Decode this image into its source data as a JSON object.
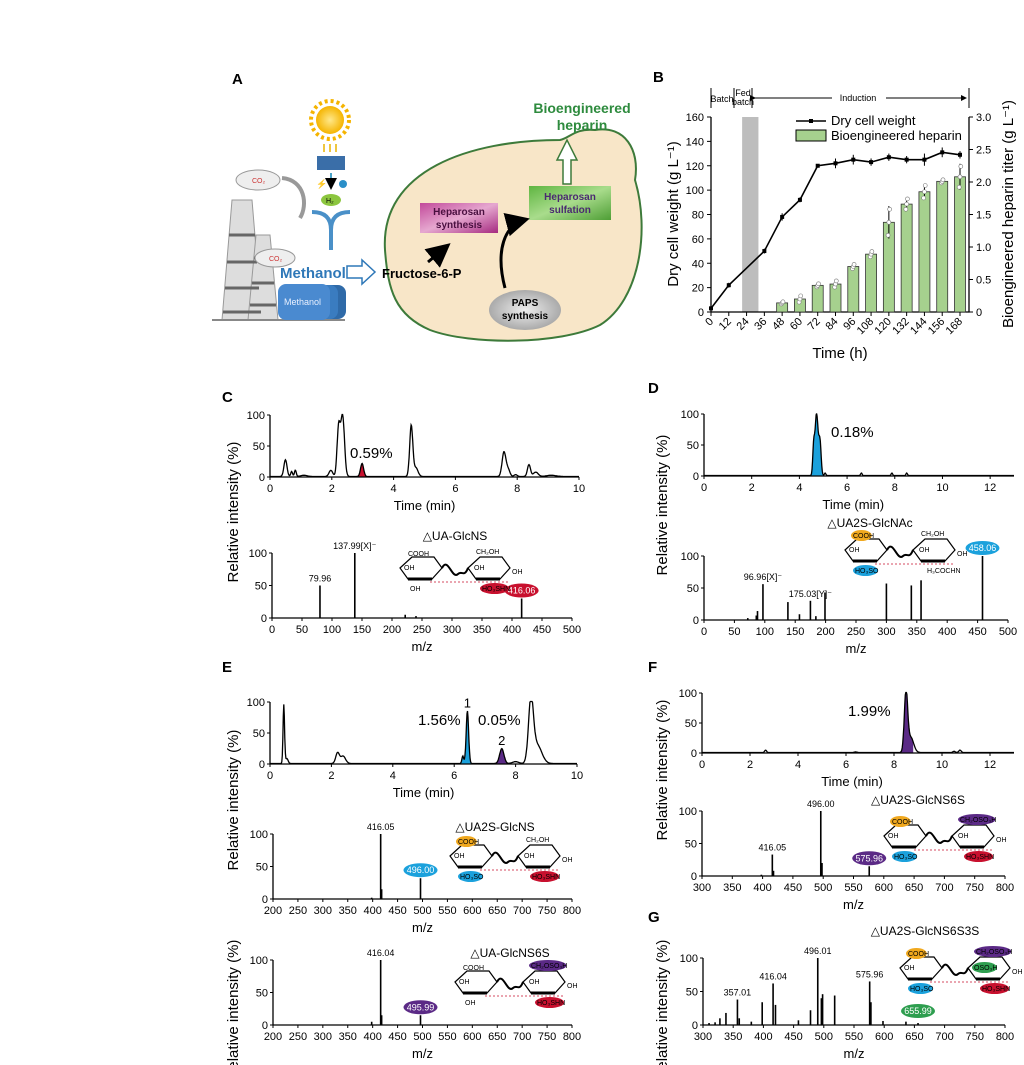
{
  "panel_labels": {
    "A": "A",
    "B": "B",
    "C": "C",
    "D": "D",
    "E": "E",
    "F": "F",
    "G": "G"
  },
  "panel_a": {
    "co2_1": "CO₂",
    "co2_2": "CO₂",
    "h2": "H₂",
    "methanol_label": "Methanol",
    "methanol_tank": "Methanol",
    "fructose": "Fructose-6-P",
    "heparosan_synthesis": [
      "Heparosan",
      "synthesis"
    ],
    "heparosan_sulfation": [
      "Heparosan",
      "sulfation"
    ],
    "paps": [
      "PAPS",
      "synthesis"
    ],
    "product": [
      "Bioengineered",
      "heparin"
    ],
    "colors": {
      "cell_fill": "#f8e6c8",
      "cell_outline": "#3d7a3a",
      "synthesis_box": "#b8398f",
      "sulfation_box": "#6cbf4a",
      "methanol": "#2f78b8",
      "product_text": "#2e8b3e"
    }
  },
  "chart_data": [
    {
      "id": "B",
      "type": "bar+line",
      "xlabel": "Time (h)",
      "ylabel": "Dry cell weight (g L⁻¹)",
      "y2label": "Bioengineered heparin titer (g L⁻¹)",
      "x_ticks": [
        0,
        12,
        24,
        36,
        48,
        60,
        72,
        84,
        96,
        108,
        120,
        132,
        144,
        156,
        168
      ],
      "ylim": [
        0,
        160
      ],
      "y_ticks": [
        0,
        20,
        40,
        60,
        80,
        100,
        120,
        140,
        160
      ],
      "y2lim": [
        0,
        3.0
      ],
      "y2_ticks": [
        "0",
        "0.5",
        "1.0",
        "1.5",
        "2.0",
        "2.5",
        "3.0"
      ],
      "phases": {
        "batch": "Batch",
        "fed_batch": [
          "Fed",
          "batch"
        ],
        "induction": "Induction"
      },
      "fed_batch_shading": [
        21,
        32
      ],
      "legend_position": "top-center",
      "series": [
        {
          "name": "Dry cell weight",
          "type": "line",
          "color": "#000000",
          "x": [
            0,
            12,
            36,
            48,
            60,
            72,
            84,
            96,
            108,
            120,
            132,
            144,
            156,
            168
          ],
          "y": [
            3,
            22,
            50,
            78,
            92,
            120,
            122,
            125,
            123,
            127,
            125,
            125,
            131,
            129
          ],
          "err": [
            1,
            2,
            2,
            3,
            2,
            1,
            4,
            4,
            3,
            3,
            3,
            5,
            4,
            3
          ]
        },
        {
          "name": "Bioengineered heparin",
          "type": "bar",
          "axis": "right",
          "color": "#a6d18e",
          "x": [
            48,
            60,
            72,
            84,
            96,
            108,
            120,
            132,
            144,
            156,
            168
          ],
          "y": [
            0.14,
            0.2,
            0.41,
            0.43,
            0.7,
            0.89,
            1.38,
            1.66,
            1.85,
            2.01,
            2.08
          ],
          "err": [
            0.02,
            0.06,
            0.03,
            0.06,
            0.04,
            0.05,
            0.25,
            0.1,
            0.12,
            0.03,
            0.2
          ]
        }
      ]
    },
    {
      "id": "C-chrom",
      "type": "line",
      "xlabel": "Time (min)",
      "ylabel": "Relative intensity (%)",
      "xlim": [
        0,
        10
      ],
      "x_ticks": [
        0,
        2,
        4,
        6,
        8,
        10
      ],
      "y_ticks": [
        0,
        50,
        100
      ],
      "peaks": [
        [
          0.5,
          27,
          0.05
        ],
        [
          0.7,
          8,
          0.03
        ],
        [
          0.82,
          10,
          0.03
        ],
        [
          1.1,
          2,
          0.1
        ],
        [
          1.97,
          10,
          0.06
        ],
        [
          2.22,
          78,
          0.05
        ],
        [
          2.35,
          98,
          0.06
        ],
        [
          2.98,
          21,
          0.05
        ],
        [
          4.57,
          82,
          0.05
        ],
        [
          4.72,
          14,
          0.07
        ],
        [
          7.57,
          39,
          0.06
        ],
        [
          7.7,
          12,
          0.06
        ],
        [
          7.95,
          3,
          0.05
        ],
        [
          8.38,
          19,
          0.05
        ],
        [
          8.6,
          7,
          0.08
        ],
        [
          9.1,
          2,
          0.15
        ]
      ],
      "highlight": [
        {
          "t": 2.98,
          "color": "#c8102e",
          "label": "0.59%"
        }
      ]
    },
    {
      "id": "C-ms",
      "type": "bar",
      "xlabel": "m/z",
      "xlim": [
        0,
        500
      ],
      "x_ticks": [
        0,
        50,
        100,
        150,
        200,
        250,
        300,
        350,
        400,
        450,
        500
      ],
      "y_ticks": [
        0,
        50,
        100
      ],
      "peaks": [
        [
          79.96,
          50
        ],
        [
          137.99,
          100
        ],
        [
          222,
          5
        ],
        [
          240,
          3
        ],
        [
          416.06,
          30
        ]
      ],
      "labels": [
        {
          "mz": 79.96,
          "text": "79.96"
        },
        {
          "mz": 137.99,
          "text": "137.99[X]⁻"
        },
        {
          "mz": 416.06,
          "text": "416.06",
          "badge": "#c8102e"
        }
      ],
      "structure": {
        "title": "△UA-GlcNS",
        "groups": {
          "lt": "COOH",
          "lm": "OH",
          "lb": "OH",
          "rt": "CH₂OH",
          "rm": "OH",
          "rr": "OH",
          "rb": "HO₃SHN"
        },
        "badges": {
          "rb": "#c8102e"
        },
        "fragment": "x"
      }
    },
    {
      "id": "D-chrom",
      "type": "line",
      "xlabel": "Time (min)",
      "ylabel": "Relative intensity (%)",
      "xlim": [
        0,
        13
      ],
      "x_ticks": [
        0,
        2,
        4,
        6,
        8,
        10,
        12
      ],
      "y_ticks": [
        0,
        50,
        100
      ],
      "peaks": [
        [
          4.6,
          45,
          0.04
        ],
        [
          4.72,
          100,
          0.06
        ],
        [
          4.86,
          55,
          0.05
        ],
        [
          5.08,
          4,
          0.03
        ],
        [
          6.6,
          4,
          0.03
        ],
        [
          7.88,
          4,
          0.03
        ],
        [
          8.5,
          4,
          0.03
        ]
      ],
      "highlight": [
        {
          "t": 4.72,
          "color": "#1ba1dc",
          "label": "0.18%"
        }
      ]
    },
    {
      "id": "D-ms",
      "type": "bar",
      "xlabel": "m/z",
      "xlim": [
        0,
        500
      ],
      "x_ticks": [
        0,
        50,
        100,
        150,
        200,
        250,
        300,
        350,
        400,
        450,
        500
      ],
      "y_ticks": [
        0,
        50,
        100
      ],
      "peaks": [
        [
          72,
          3
        ],
        [
          86,
          7
        ],
        [
          88,
          14
        ],
        [
          96.96,
          56
        ],
        [
          138,
          28
        ],
        [
          157,
          9
        ],
        [
          175.03,
          30
        ],
        [
          184,
          6
        ],
        [
          199,
          43
        ],
        [
          300,
          57
        ],
        [
          341,
          54
        ],
        [
          357,
          62
        ],
        [
          458.06,
          100
        ]
      ],
      "labels": [
        {
          "mz": 96.96,
          "text": "96.96[X]⁻"
        },
        {
          "mz": 175.03,
          "text": "175.03[Y]⁻"
        },
        {
          "mz": 458.06,
          "text": "458.06",
          "badge": "#1ba1dc"
        }
      ],
      "structure": {
        "title": "△UA2S-GlcNAc",
        "groups": {
          "lt": "COOH",
          "lm": "OH",
          "lb": "HO₃SO",
          "rt": "CH₂OH",
          "rm": "OH",
          "rr": "OH",
          "rb": "H₃COCHN"
        },
        "badges": {
          "lt": "#f0a81e",
          "lb": "#1ba1dc"
        },
        "fragment": "X  Y"
      }
    },
    {
      "id": "E-chrom",
      "type": "line",
      "xlabel": "Time (min)",
      "ylabel": "Relative intensity (%)",
      "xlim": [
        0,
        10
      ],
      "x_ticks": [
        0,
        2,
        4,
        6,
        8,
        10
      ],
      "y_ticks": [
        0,
        50,
        100
      ],
      "peaks": [
        [
          0.45,
          95,
          0.025
        ],
        [
          0.55,
          8,
          0.04
        ],
        [
          2.2,
          17,
          0.06
        ],
        [
          2.38,
          12,
          0.08
        ],
        [
          6.28,
          12,
          0.03
        ],
        [
          6.43,
          85,
          0.04
        ],
        [
          7.55,
          24,
          0.07
        ],
        [
          8.0,
          3,
          0.1
        ],
        [
          8.5,
          98,
          0.08
        ],
        [
          8.7,
          30,
          0.15
        ]
      ],
      "highlight": [
        {
          "t": 6.43,
          "color": "#1ba1dc",
          "label": "1.56%",
          "peak": "1"
        },
        {
          "t": 7.55,
          "color": "#5b2a86",
          "label": "0.05%",
          "peak": "2"
        }
      ]
    },
    {
      "id": "E-ms1",
      "type": "bar",
      "xlabel": "m/z",
      "xlim": [
        200,
        800
      ],
      "x_ticks": [
        200,
        250,
        300,
        350,
        400,
        450,
        500,
        550,
        600,
        650,
        700,
        750,
        800
      ],
      "y_ticks": [
        0,
        50,
        100
      ],
      "peaks": [
        [
          398,
          2
        ],
        [
          416.05,
          100
        ],
        [
          418,
          15
        ],
        [
          496.0,
          32
        ]
      ],
      "labels": [
        {
          "mz": 416.05,
          "text": "416.05"
        },
        {
          "mz": 496.0,
          "text": "496.00",
          "badge": "#1ba1dc"
        }
      ],
      "structure": {
        "title": "△UA2S-GlcNS",
        "groups": {
          "lt": "COOH",
          "lm": "OH",
          "lb": "HO₃SO",
          "rt": "CH₂OH",
          "rm": "OH",
          "rr": "OH",
          "rb": "HO₃SHN"
        },
        "badges": {
          "lt": "#f0a81e",
          "lb": "#1ba1dc",
          "rb": "#c8102e"
        }
      }
    },
    {
      "id": "E-ms2",
      "type": "bar",
      "xlabel": "m/z",
      "ylabel": "Relative intensity (%)",
      "xlim": [
        200,
        800
      ],
      "x_ticks": [
        200,
        250,
        300,
        350,
        400,
        450,
        500,
        550,
        600,
        650,
        700,
        750,
        800
      ],
      "y_ticks": [
        0,
        50,
        100
      ],
      "peaks": [
        [
          398,
          5
        ],
        [
          416.04,
          100
        ],
        [
          418,
          15
        ],
        [
          495.99,
          15
        ]
      ],
      "labels": [
        {
          "mz": 416.04,
          "text": "416.04"
        },
        {
          "mz": 495.99,
          "text": "495.99",
          "badge": "#5b2a86"
        }
      ],
      "structure": {
        "title": "△UA-GlcNS6S",
        "groups": {
          "lt": "COOH",
          "lm": "OH",
          "lb": "OH",
          "rt": "CH₂OSO₃H",
          "rm": "OH",
          "rr": "OH",
          "rb": "HO₃SHN"
        },
        "badges": {
          "rt": "#5b2a86",
          "rb": "#c8102e"
        }
      }
    },
    {
      "id": "F-chrom",
      "type": "line",
      "xlabel": "Time (min)",
      "ylabel": "Relative intensity (%)",
      "xlim": [
        0,
        13
      ],
      "x_ticks": [
        0,
        2,
        4,
        6,
        8,
        10,
        12
      ],
      "y_ticks": [
        0,
        50,
        100
      ],
      "peaks": [
        [
          2.65,
          4,
          0.04
        ],
        [
          6.4,
          1,
          0.05
        ],
        [
          8.5,
          100,
          0.07
        ],
        [
          8.7,
          25,
          0.12
        ],
        [
          10.5,
          2,
          0.05
        ],
        [
          10.75,
          4,
          0.05
        ]
      ],
      "highlight": [
        {
          "t": 8.5,
          "color": "#5b2a86",
          "label": "1.99%"
        }
      ]
    },
    {
      "id": "F-ms",
      "type": "bar",
      "xlabel": "m/z",
      "xlim": [
        300,
        800
      ],
      "x_ticks": [
        300,
        350,
        400,
        450,
        500,
        550,
        600,
        650,
        700,
        750,
        800
      ],
      "y_ticks": [
        0,
        50,
        100
      ],
      "peaks": [
        [
          398,
          2
        ],
        [
          416.05,
          33
        ],
        [
          418,
          8
        ],
        [
          496.0,
          100
        ],
        [
          498,
          20
        ],
        [
          575.96,
          15
        ]
      ],
      "labels": [
        {
          "mz": 416.05,
          "text": "416.05"
        },
        {
          "mz": 496.0,
          "text": "496.00"
        },
        {
          "mz": 575.96,
          "text": "575.96",
          "badge": "#5b2a86"
        }
      ],
      "structure": {
        "title": "△UA2S-GlcNS6S",
        "groups": {
          "lt": "COOH",
          "lm": "OH",
          "lb": "HO₃SO",
          "rt": "CH₂OSO₃H",
          "rm": "OH",
          "rr": "OH",
          "rb": "HO₃SHN"
        },
        "badges": {
          "lt": "#f0a81e",
          "lb": "#1ba1dc",
          "rt": "#5b2a86",
          "rb": "#c8102e"
        }
      }
    },
    {
      "id": "G-ms",
      "type": "bar",
      "xlabel": "m/z",
      "xlim": [
        300,
        800
      ],
      "x_ticks": [
        300,
        350,
        400,
        450,
        500,
        550,
        600,
        650,
        700,
        750,
        800
      ],
      "y_ticks": [
        0,
        50,
        100
      ],
      "peaks": [
        [
          310,
          3
        ],
        [
          320,
          4
        ],
        [
          328,
          10
        ],
        [
          338,
          18
        ],
        [
          357.01,
          38
        ],
        [
          360,
          10
        ],
        [
          380,
          5
        ],
        [
          398,
          34
        ],
        [
          416.04,
          62
        ],
        [
          420,
          30
        ],
        [
          458,
          7
        ],
        [
          478,
          22
        ],
        [
          490,
          100
        ],
        [
          496.01,
          40
        ],
        [
          498,
          46
        ],
        [
          518,
          44
        ],
        [
          575.96,
          65
        ],
        [
          578,
          34
        ],
        [
          598,
          6
        ],
        [
          636,
          5
        ],
        [
          655.99,
          3
        ]
      ],
      "labels": [
        {
          "mz": 357.01,
          "text": "357.01"
        },
        {
          "mz": 416.04,
          "text": "416.04"
        },
        {
          "mz": 490,
          "text": "496.01"
        },
        {
          "mz": 575.96,
          "text": "575.96"
        },
        {
          "mz": 655.99,
          "text": "655.99",
          "badge": "#2e9e4f"
        }
      ],
      "structure": {
        "title": "△UA2S-GlcNS6S3S",
        "groups": {
          "lt": "COOH",
          "lm": "OH",
          "lb": "HO₃SO",
          "rt": "CH₂OSO₃H",
          "rm": "OSO₃H",
          "rr": "OH",
          "rb": "HO₃SHN"
        },
        "badges": {
          "lt": "#f0a81e",
          "lb": "#1ba1dc",
          "rt": "#5b2a86",
          "rm": "#2e9e4f",
          "rb": "#c8102e"
        }
      }
    }
  ]
}
